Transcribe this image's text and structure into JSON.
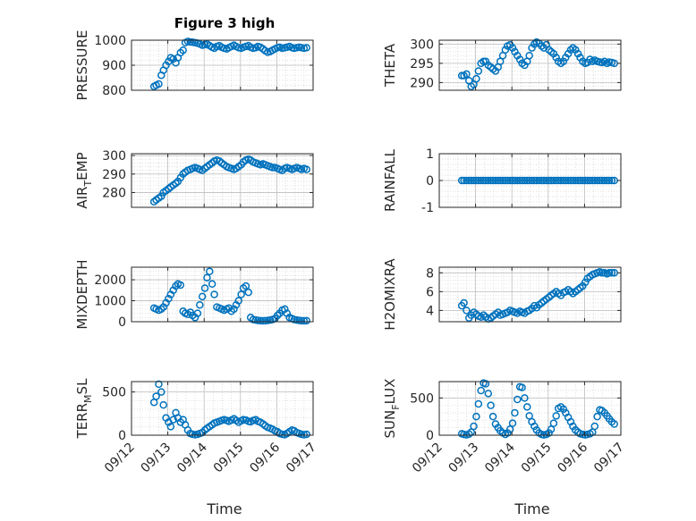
{
  "title": "Figure 3 high",
  "xlabel": "Time",
  "date_ticks": [
    "09/12",
    "09/13",
    "09/14",
    "09/15",
    "09/16",
    "09/17"
  ],
  "colors": {
    "marker": "#0072BD",
    "axes": "#262626",
    "grid": "#d4d4d4"
  },
  "chart_data": [
    {
      "type": "scatter",
      "ylabel_main": "PRESSURE",
      "ylabel_sub": "",
      "ylim": [
        800,
        1000
      ],
      "yticks": [
        800,
        900,
        1000
      ],
      "yticklabels": [
        "800",
        "900",
        "1000"
      ],
      "x": [
        12.62,
        12.68,
        12.75,
        12.82,
        12.88,
        12.95,
        13.02,
        13.08,
        13.15,
        13.22,
        13.28,
        13.35,
        13.42,
        13.48,
        13.55,
        13.62,
        13.68,
        13.75,
        13.82,
        13.88,
        13.95,
        14.02,
        14.08,
        14.15,
        14.22,
        14.28,
        14.35,
        14.42,
        14.48,
        14.55,
        14.62,
        14.68,
        14.75,
        14.82,
        14.88,
        14.95,
        15.02,
        15.08,
        15.15,
        15.22,
        15.28,
        15.35,
        15.42,
        15.48,
        15.55,
        15.62,
        15.68,
        15.75,
        15.82,
        15.88,
        15.95,
        16.02,
        16.08,
        16.15,
        16.22,
        16.28,
        16.35,
        16.42,
        16.48,
        16.55,
        16.62,
        16.68,
        16.75,
        16.82
      ],
      "y": [
        815,
        820,
        825,
        860,
        880,
        900,
        915,
        930,
        925,
        910,
        930,
        950,
        960,
        990,
        995,
        993,
        992,
        990,
        988,
        985,
        980,
        982,
        985,
        978,
        972,
        968,
        975,
        978,
        972,
        968,
        965,
        970,
        975,
        980,
        975,
        970,
        968,
        972,
        975,
        978,
        972,
        968,
        970,
        975,
        972,
        965,
        958,
        952,
        955,
        960,
        965,
        970,
        972,
        968,
        970,
        972,
        975,
        970,
        968,
        970,
        972,
        970,
        968,
        970
      ]
    },
    {
      "type": "scatter",
      "ylabel_main": "THETA",
      "ylabel_sub": "",
      "ylim": [
        288,
        301
      ],
      "yticks": [
        290,
        295,
        300
      ],
      "yticklabels": [
        "290",
        "295",
        "300"
      ],
      "x": [
        12.62,
        12.68,
        12.75,
        12.82,
        12.88,
        12.95,
        13.02,
        13.08,
        13.15,
        13.22,
        13.28,
        13.35,
        13.42,
        13.48,
        13.55,
        13.62,
        13.68,
        13.75,
        13.82,
        13.88,
        13.95,
        14.02,
        14.08,
        14.15,
        14.22,
        14.28,
        14.35,
        14.42,
        14.48,
        14.55,
        14.62,
        14.68,
        14.75,
        14.82,
        14.88,
        14.95,
        15.02,
        15.08,
        15.15,
        15.22,
        15.28,
        15.35,
        15.42,
        15.48,
        15.55,
        15.62,
        15.68,
        15.75,
        15.82,
        15.88,
        15.95,
        16.02,
        16.08,
        16.15,
        16.22,
        16.28,
        16.35,
        16.42,
        16.48,
        16.55,
        16.62,
        16.68,
        16.75,
        16.82
      ],
      "y": [
        291.8,
        291.8,
        292.2,
        290.5,
        289.0,
        289.5,
        291.0,
        293.0,
        295.0,
        295.5,
        295.5,
        294.5,
        294.0,
        293.5,
        293.0,
        294.0,
        295.5,
        297.0,
        298.5,
        299.5,
        299.8,
        299.0,
        298.0,
        297.0,
        296.0,
        295.0,
        294.5,
        295.5,
        297.0,
        299.0,
        300.0,
        300.5,
        300.2,
        299.5,
        299.0,
        299.8,
        298.5,
        298.0,
        297.5,
        296.5,
        295.5,
        295.0,
        295.5,
        296.5,
        297.5,
        298.5,
        299.0,
        298.5,
        297.5,
        296.5,
        295.5,
        295.0,
        295.2,
        296.0,
        295.5,
        295.8,
        295.5,
        295.3,
        295.2,
        295.5,
        295.0,
        295.3,
        295.2,
        295.0
      ]
    },
    {
      "type": "scatter",
      "ylabel_main": "AIR",
      "ylabel_sub": "T",
      "ylabel_rest": "EMP",
      "ylim": [
        272,
        301
      ],
      "yticks": [
        280,
        290,
        300
      ],
      "yticklabels": [
        "280",
        "290",
        "300"
      ],
      "x": [
        12.62,
        12.68,
        12.75,
        12.82,
        12.88,
        12.95,
        13.02,
        13.08,
        13.15,
        13.22,
        13.28,
        13.35,
        13.42,
        13.48,
        13.55,
        13.62,
        13.68,
        13.75,
        13.82,
        13.88,
        13.95,
        14.02,
        14.08,
        14.15,
        14.22,
        14.28,
        14.35,
        14.42,
        14.48,
        14.55,
        14.62,
        14.68,
        14.75,
        14.82,
        14.88,
        14.95,
        15.02,
        15.08,
        15.15,
        15.22,
        15.28,
        15.35,
        15.42,
        15.48,
        15.55,
        15.62,
        15.68,
        15.75,
        15.82,
        15.88,
        15.95,
        16.02,
        16.08,
        16.15,
        16.22,
        16.28,
        16.35,
        16.42,
        16.48,
        16.55,
        16.62,
        16.68,
        16.75,
        16.82
      ],
      "y": [
        275,
        276,
        277,
        278,
        280,
        281,
        282,
        283,
        284,
        285,
        286,
        288,
        290,
        291,
        292,
        292.5,
        293,
        293.5,
        293,
        292.5,
        292,
        293,
        294,
        295,
        296,
        297,
        297.5,
        297,
        296,
        295,
        294,
        293.5,
        293,
        292.5,
        293,
        294,
        295,
        296.5,
        297.5,
        298,
        297.5,
        296.5,
        296,
        295.5,
        295,
        295.5,
        295,
        294.5,
        294,
        293.5,
        293.5,
        293,
        292.5,
        292,
        293,
        293.5,
        293,
        292.5,
        293,
        293.5,
        293,
        292.5,
        293,
        292.5
      ]
    },
    {
      "type": "scatter",
      "ylabel_main": "RAINFALL",
      "ylabel_sub": "",
      "ylim": [
        -1,
        1
      ],
      "yticks": [
        -1,
        0,
        1
      ],
      "yticklabels": [
        "-1",
        "0",
        "1"
      ],
      "x": [
        12.62,
        12.68,
        12.75,
        12.82,
        12.88,
        12.95,
        13.02,
        13.08,
        13.15,
        13.22,
        13.28,
        13.35,
        13.42,
        13.48,
        13.55,
        13.62,
        13.68,
        13.75,
        13.82,
        13.88,
        13.95,
        14.02,
        14.08,
        14.15,
        14.22,
        14.28,
        14.35,
        14.42,
        14.48,
        14.55,
        14.62,
        14.68,
        14.75,
        14.82,
        14.88,
        14.95,
        15.02,
        15.08,
        15.15,
        15.22,
        15.28,
        15.35,
        15.42,
        15.48,
        15.55,
        15.62,
        15.68,
        15.75,
        15.82,
        15.88,
        15.95,
        16.02,
        16.08,
        16.15,
        16.22,
        16.28,
        16.35,
        16.42,
        16.48,
        16.55,
        16.62,
        16.68,
        16.75,
        16.82
      ],
      "y": [
        0,
        0,
        0,
        0,
        0,
        0,
        0,
        0,
        0,
        0,
        0,
        0,
        0,
        0,
        0,
        0,
        0,
        0,
        0,
        0,
        0,
        0,
        0,
        0,
        0,
        0,
        0,
        0,
        0,
        0,
        0,
        0,
        0,
        0,
        0,
        0,
        0,
        0,
        0,
        0,
        0,
        0,
        0,
        0,
        0,
        0,
        0,
        0,
        0,
        0,
        0,
        0,
        0,
        0,
        0,
        0,
        0,
        0,
        0,
        0,
        0,
        0,
        0,
        0
      ]
    },
    {
      "type": "scatter",
      "ylabel_main": "MIXDEPTH",
      "ylabel_sub": "",
      "ylim": [
        0,
        2600
      ],
      "yticks": [
        0,
        1000,
        2000
      ],
      "yticklabels": [
        "0",
        "1000",
        "2000"
      ],
      "x": [
        12.62,
        12.68,
        12.75,
        12.82,
        12.88,
        12.95,
        13.02,
        13.08,
        13.15,
        13.22,
        13.28,
        13.35,
        13.42,
        13.48,
        13.55,
        13.62,
        13.68,
        13.75,
        13.82,
        13.88,
        13.95,
        14.02,
        14.08,
        14.15,
        14.22,
        14.28,
        14.35,
        14.42,
        14.48,
        14.55,
        14.62,
        14.68,
        14.75,
        14.82,
        14.88,
        14.95,
        15.02,
        15.08,
        15.15,
        15.22,
        15.28,
        15.35,
        15.42,
        15.48,
        15.55,
        15.62,
        15.68,
        15.75,
        15.82,
        15.88,
        15.95,
        16.02,
        16.08,
        16.15,
        16.22,
        16.28,
        16.35,
        16.42,
        16.48,
        16.55,
        16.62,
        16.68,
        16.75,
        16.82
      ],
      "y": [
        650,
        600,
        550,
        600,
        700,
        900,
        1100,
        1300,
        1500,
        1700,
        1800,
        1750,
        500,
        400,
        350,
        450,
        300,
        200,
        400,
        800,
        1200,
        1600,
        2100,
        2400,
        1800,
        1300,
        700,
        650,
        600,
        550,
        600,
        650,
        500,
        600,
        800,
        1000,
        1300,
        1600,
        1700,
        1400,
        200,
        100,
        80,
        60,
        50,
        40,
        50,
        60,
        80,
        100,
        150,
        300,
        400,
        550,
        600,
        400,
        200,
        150,
        100,
        80,
        60,
        50,
        40,
        50
      ]
    },
    {
      "type": "scatter",
      "ylabel_main": "H2OMIXRA",
      "ylabel_sub": "",
      "ylim": [
        2.8,
        8.6
      ],
      "yticks": [
        4,
        6,
        8
      ],
      "yticklabels": [
        "4",
        "6",
        "8"
      ],
      "x": [
        12.62,
        12.68,
        12.75,
        12.82,
        12.88,
        12.95,
        13.02,
        13.08,
        13.15,
        13.22,
        13.28,
        13.35,
        13.42,
        13.48,
        13.55,
        13.62,
        13.68,
        13.75,
        13.82,
        13.88,
        13.95,
        14.02,
        14.08,
        14.15,
        14.22,
        14.28,
        14.35,
        14.42,
        14.48,
        14.55,
        14.62,
        14.68,
        14.75,
        14.82,
        14.88,
        14.95,
        15.02,
        15.08,
        15.15,
        15.22,
        15.28,
        15.35,
        15.42,
        15.48,
        15.55,
        15.62,
        15.68,
        15.75,
        15.82,
        15.88,
        15.95,
        16.02,
        16.08,
        16.15,
        16.22,
        16.28,
        16.35,
        16.42,
        16.48,
        16.55,
        16.62,
        16.68,
        16.75,
        16.82
      ],
      "y": [
        4.5,
        4.8,
        4.0,
        3.2,
        3.5,
        3.8,
        3.6,
        3.4,
        3.3,
        3.5,
        3.3,
        3.1,
        3.2,
        3.4,
        3.6,
        3.8,
        3.5,
        3.6,
        3.7,
        3.8,
        4.0,
        3.9,
        3.8,
        3.7,
        3.9,
        3.8,
        3.7,
        3.9,
        4.0,
        4.2,
        4.5,
        4.3,
        4.6,
        4.8,
        5.0,
        5.2,
        5.4,
        5.6,
        5.8,
        6.0,
        5.8,
        5.6,
        5.9,
        6.0,
        6.2,
        6.0,
        5.8,
        6.0,
        6.2,
        6.4,
        6.6,
        7.0,
        7.4,
        7.6,
        7.8,
        7.9,
        8.0,
        8.1,
        8.0,
        8.0,
        7.9,
        8.0,
        8.0,
        8.0
      ]
    },
    {
      "type": "scatter",
      "ylabel_main": "TERR",
      "ylabel_sub": "M",
      "ylabel_rest": "SL",
      "ylim": [
        0,
        620
      ],
      "yticks": [
        0,
        500
      ],
      "yticklabels": [
        "0",
        "500"
      ],
      "x": [
        12.62,
        12.68,
        12.75,
        12.82,
        12.88,
        12.95,
        13.02,
        13.08,
        13.15,
        13.22,
        13.28,
        13.35,
        13.42,
        13.48,
        13.55,
        13.62,
        13.68,
        13.75,
        13.82,
        13.88,
        13.95,
        14.02,
        14.08,
        14.15,
        14.22,
        14.28,
        14.35,
        14.42,
        14.48,
        14.55,
        14.62,
        14.68,
        14.75,
        14.82,
        14.88,
        14.95,
        15.02,
        15.08,
        15.15,
        15.22,
        15.28,
        15.35,
        15.42,
        15.48,
        15.55,
        15.62,
        15.68,
        15.75,
        15.82,
        15.88,
        15.95,
        16.02,
        16.08,
        16.15,
        16.22,
        16.28,
        16.35,
        16.42,
        16.48,
        16.55,
        16.62,
        16.68,
        16.75,
        16.82
      ],
      "y": [
        380,
        450,
        590,
        500,
        350,
        200,
        150,
        100,
        180,
        260,
        200,
        150,
        180,
        120,
        60,
        20,
        10,
        5,
        10,
        20,
        30,
        60,
        80,
        100,
        120,
        140,
        150,
        160,
        170,
        180,
        170,
        160,
        175,
        190,
        170,
        150,
        165,
        180,
        175,
        160,
        155,
        170,
        180,
        160,
        150,
        130,
        110,
        90,
        80,
        70,
        50,
        40,
        20,
        10,
        5,
        20,
        40,
        60,
        50,
        30,
        20,
        10,
        5,
        10
      ]
    },
    {
      "type": "scatter",
      "ylabel_main": "SUN",
      "ylabel_sub": "F",
      "ylabel_rest": "LUX",
      "ylim": [
        0,
        720
      ],
      "yticks": [
        0,
        500
      ],
      "yticklabels": [
        "0",
        "500"
      ],
      "x": [
        12.62,
        12.68,
        12.75,
        12.82,
        12.88,
        12.95,
        13.02,
        13.08,
        13.15,
        13.22,
        13.28,
        13.35,
        13.42,
        13.48,
        13.55,
        13.62,
        13.68,
        13.75,
        13.82,
        13.88,
        13.95,
        14.02,
        14.08,
        14.15,
        14.22,
        14.28,
        14.35,
        14.42,
        14.48,
        14.55,
        14.62,
        14.68,
        14.75,
        14.82,
        14.88,
        14.95,
        15.02,
        15.08,
        15.15,
        15.22,
        15.28,
        15.35,
        15.42,
        15.48,
        15.55,
        15.62,
        15.68,
        15.75,
        15.82,
        15.88,
        15.95,
        16.02,
        16.08,
        16.15,
        16.22,
        16.28,
        16.35,
        16.42,
        16.48,
        16.55,
        16.62,
        16.68,
        16.75,
        16.82
      ],
      "y": [
        20,
        10,
        5,
        15,
        40,
        120,
        250,
        420,
        600,
        700,
        690,
        560,
        400,
        250,
        150,
        100,
        60,
        30,
        10,
        30,
        80,
        160,
        300,
        480,
        650,
        640,
        500,
        380,
        260,
        180,
        120,
        70,
        30,
        10,
        5,
        10,
        30,
        80,
        160,
        260,
        360,
        380,
        350,
        300,
        240,
        180,
        120,
        70,
        40,
        20,
        10,
        5,
        10,
        20,
        40,
        120,
        250,
        340,
        330,
        300,
        260,
        220,
        180,
        150
      ]
    }
  ]
}
